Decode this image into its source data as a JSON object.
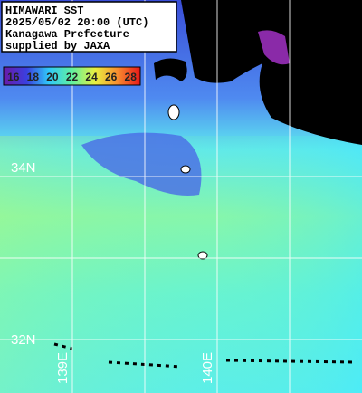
{
  "header": {
    "lines": [
      "HIMAWARI SST",
      "2025/05/02 20:00 (UTC)",
      "Kanagawa Prefecture",
      "supplied by JAXA"
    ]
  },
  "colorbar": {
    "labels": [
      16,
      18,
      20,
      22,
      24,
      26,
      28
    ]
  },
  "grid_labels": {
    "latitudes": [
      "34N",
      "32N"
    ],
    "longitudes": [
      "139E",
      "140E"
    ]
  }
}
